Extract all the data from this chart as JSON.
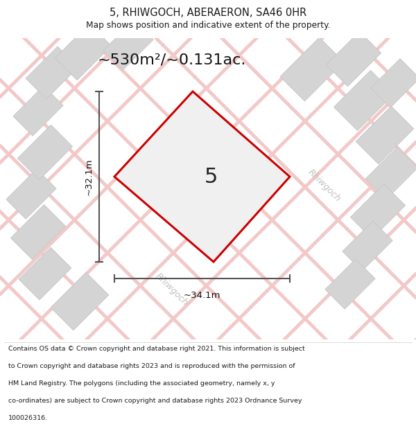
{
  "title": "5, RHIWGOCH, ABERAERON, SA46 0HR",
  "subtitle": "Map shows position and indicative extent of the property.",
  "area_label": "~530m²/~0.131ac.",
  "plot_number": "5",
  "width_label": "~34.1m",
  "height_label": "~32.1m",
  "footer_lines": [
    "Contains OS data © Crown copyright and database right 2021. This information is subject",
    "to Crown copyright and database rights 2023 and is reproduced with the permission of",
    "HM Land Registry. The polygons (including the associated geometry, namely x, y",
    "co-ordinates) are subject to Crown copyright and database rights 2023 Ordnance Survey",
    "100026316."
  ],
  "road_label": "Rhiwgoch",
  "road_label_color": "#c0c0c0",
  "building_fill": "#d4d4d4",
  "building_edge": "#c8c8c8",
  "road_line_color": "#f2c8c8",
  "plot_edge_color": "#cc0000",
  "plot_fill_color": "#f0f0f0",
  "dim_line_color": "#555555",
  "map_bg_color": "#f8f8f8",
  "white": "#ffffff",
  "title_color": "#1a1a1a",
  "footer_color": "#1a1a1a"
}
